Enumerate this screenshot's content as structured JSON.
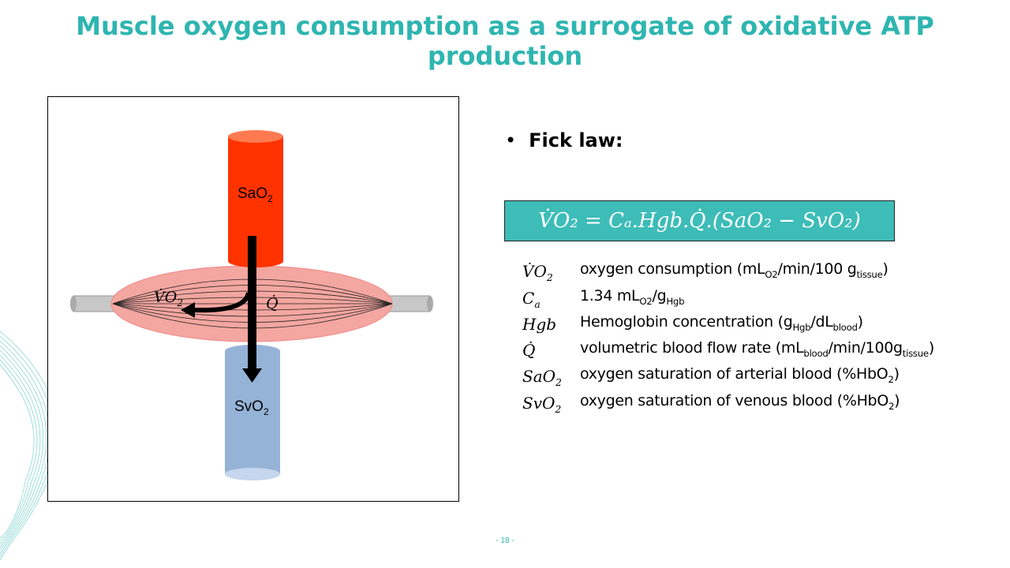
{
  "title": "Muscle oxygen consumption as a surrogate of oxidative ATP production",
  "diagram": {
    "top_cylinder": {
      "label": "SaO",
      "sub": "2",
      "color": "#ff3300"
    },
    "bottom_cylinder": {
      "label": "SvO",
      "sub": "2",
      "color": "#95b3d7"
    },
    "muscle": {
      "color": "#f4a6a0"
    },
    "vo2_label": {
      "text": "V̇O",
      "sub": "2"
    },
    "q_label": "Q̇"
  },
  "fick": {
    "bullet": "Fick law:",
    "equation": "V̇O₂ = Cₐ.Hgb.Q̇.(SaO₂ − SvO₂)",
    "equation_bg": "#3dbcb8"
  },
  "legend": [
    {
      "sym": "V̇O",
      "sym_sub": "2",
      "desc_parts": [
        {
          "t": "oxygen consumption (mL"
        },
        {
          "s": "O2"
        },
        {
          "t": "/min/100 g"
        },
        {
          "s": "tissue"
        },
        {
          "t": ")"
        }
      ]
    },
    {
      "sym": "C",
      "sym_sub": "a",
      "desc_parts": [
        {
          "t": "1.34 mL"
        },
        {
          "s": "O2"
        },
        {
          "t": "/g"
        },
        {
          "s": "Hgb"
        }
      ]
    },
    {
      "sym": "Hgb",
      "sym_sub": "",
      "desc_parts": [
        {
          "t": "Hemoglobin concentration (g"
        },
        {
          "s": "Hgb"
        },
        {
          "t": "/dL"
        },
        {
          "s": "blood"
        },
        {
          "t": ")"
        }
      ]
    },
    {
      "sym": "Q̇",
      "sym_sub": "",
      "desc_parts": [
        {
          "t": "volumetric blood flow rate (mL"
        },
        {
          "s": "blood"
        },
        {
          "t": "/min/100g"
        },
        {
          "s": "tissue"
        },
        {
          "t": ")"
        }
      ]
    },
    {
      "sym": "SaO",
      "sym_sub": "2",
      "desc_parts": [
        {
          "t": "oxygen saturation of arterial blood (%HbO"
        },
        {
          "s": "2"
        },
        {
          "t": ")"
        }
      ]
    },
    {
      "sym": "SvO",
      "sym_sub": "2",
      "desc_parts": [
        {
          "t": "oxygen saturation of venous blood (%HbO"
        },
        {
          "s": "2"
        },
        {
          "t": ")"
        }
      ]
    }
  ],
  "page_number": "- 18 -"
}
